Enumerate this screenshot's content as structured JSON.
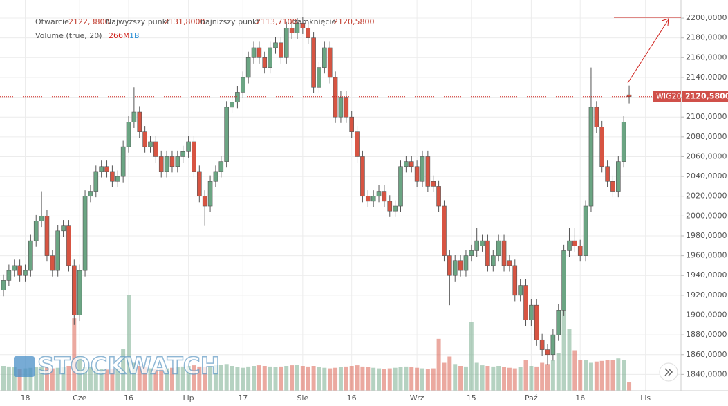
{
  "chart_data": {
    "type": "candlestick",
    "header": {
      "open_label": "Otwarcie",
      "open": "2122,3800",
      "high_label": "Najwyższy punkt",
      "high": "2131,8000",
      "low_label": "najniższy punkt",
      "low": "2113,7100",
      "close_label": "zamknięcie",
      "close": "2120,5800"
    },
    "volume_label": "Volume (true, 20)",
    "volume_value": "266M",
    "volume_ma": "1B",
    "symbol": "WIG20",
    "last_price": "2120,5800",
    "watermark": "STOCKWATCH",
    "up_color": "#6ba583",
    "down_color": "#d75442",
    "categories": [
      null,
      null,
      null,
      null,
      "18",
      null,
      null,
      null,
      null,
      null,
      null,
      null,
      null,
      null,
      "Cze",
      null,
      null,
      null,
      null,
      null,
      null,
      null,
      null,
      "16",
      null,
      null,
      null,
      null,
      null,
      null,
      null,
      null,
      null,
      null,
      "Lip",
      null,
      null,
      null,
      null,
      null,
      null,
      null,
      null,
      null,
      "17",
      null,
      null,
      null,
      null,
      null,
      null,
      null,
      null,
      null,
      null,
      "Sie",
      null,
      null,
      null,
      null,
      null,
      null,
      null,
      null,
      "16",
      null,
      null,
      null,
      null,
      null,
      null,
      null,
      null,
      null,
      null,
      null,
      "Wrz",
      null,
      null,
      null,
      null,
      null,
      null,
      null,
      null,
      null,
      "15",
      null,
      null,
      null,
      null,
      null,
      null,
      null,
      null,
      null,
      null,
      "Paź",
      null,
      null,
      null,
      null,
      null,
      null,
      null,
      null,
      "16",
      null,
      null,
      null,
      null,
      null,
      null,
      null,
      null,
      null,
      null,
      null,
      "Lis"
    ],
    "open": [
      1925,
      1935,
      1945,
      1950,
      1940,
      1945,
      1975,
      1995,
      2000,
      1960,
      1945,
      1985,
      1990,
      1950,
      1900,
      1945,
      2020,
      2025,
      2045,
      2050,
      2045,
      2035,
      2040,
      2070,
      2095,
      2105,
      2085,
      2070,
      2075,
      2060,
      2045,
      2060,
      2050,
      2060,
      2065,
      2075,
      2045,
      2020,
      2010,
      2035,
      2045,
      2055,
      2110,
      2115,
      2125,
      2140,
      2160,
      2170,
      2160,
      2150,
      2170,
      2175,
      2160,
      2190,
      2185,
      2195,
      2190,
      2180,
      2130,
      2150,
      2170,
      2140,
      2100,
      2120,
      2100,
      2085,
      2060,
      2020,
      2015,
      2020,
      2025,
      2015,
      2005,
      2010,
      2050,
      2055,
      2050,
      2035,
      2060,
      2035,
      2030,
      2010,
      1960,
      1940,
      1955,
      1945,
      1960,
      1965,
      1970,
      1975,
      1950,
      1960,
      1975,
      1955,
      1950,
      1920,
      1930,
      1895,
      1910,
      1875,
      1865,
      1860,
      1880,
      1905,
      1965,
      1975,
      1970,
      1960,
      2010,
      2110,
      2090,
      2050,
      2035,
      2025,
      2055,
      2122.38,
      null,
      null,
      null
    ],
    "high": [
      1941,
      1951,
      1956,
      1956,
      1951,
      1981,
      2001,
      2025,
      2006,
      1966,
      1991,
      1996,
      1996,
      1956,
      1951,
      2026,
      2031,
      2051,
      2056,
      2056,
      2051,
      2046,
      2076,
      2101,
      2130,
      2111,
      2091,
      2081,
      2081,
      2066,
      2066,
      2066,
      2066,
      2071,
      2081,
      2081,
      2051,
      2026,
      2041,
      2051,
      2061,
      2116,
      2121,
      2131,
      2146,
      2166,
      2176,
      2176,
      2166,
      2176,
      2181,
      2181,
      2196,
      2196,
      2200,
      2201,
      2196,
      2186,
      2156,
      2176,
      2176,
      2146,
      2126,
      2126,
      2106,
      2091,
      2066,
      2026,
      2026,
      2031,
      2031,
      2021,
      2016,
      2056,
      2061,
      2061,
      2056,
      2066,
      2066,
      2041,
      2036,
      2016,
      1966,
      1961,
      1961,
      1966,
      1971,
      1988,
      1981,
      1981,
      1966,
      1981,
      1981,
      1961,
      1956,
      1936,
      1936,
      1916,
      1916,
      1881,
      1871,
      1886,
      1911,
      1971,
      1988,
      1988,
      1976,
      2016,
      2150,
      2116,
      2096,
      2056,
      2041,
      2061,
      2101,
      2131.8,
      null,
      null,
      null
    ],
    "low": [
      1919,
      1929,
      1939,
      1934,
      1934,
      1939,
      1969,
      1989,
      1954,
      1939,
      1939,
      1979,
      1944,
      1890,
      1894,
      1939,
      2014,
      2019,
      2039,
      2039,
      2029,
      2029,
      2034,
      2064,
      2089,
      2079,
      2064,
      2064,
      2054,
      2039,
      2039,
      2044,
      2044,
      2054,
      2059,
      2039,
      2014,
      1990,
      2004,
      2029,
      2039,
      2049,
      2104,
      2109,
      2119,
      2134,
      2154,
      2154,
      2144,
      2144,
      2164,
      2154,
      2154,
      2179,
      2179,
      2184,
      2174,
      2124,
      2124,
      2144,
      2134,
      2094,
      2094,
      2094,
      2079,
      2054,
      2014,
      2009,
      2009,
      2014,
      2009,
      1999,
      1999,
      2004,
      2044,
      2044,
      2029,
      2029,
      2024,
      2024,
      2004,
      1954,
      1910,
      1934,
      1939,
      1939,
      1954,
      1959,
      1964,
      1944,
      1944,
      1954,
      1944,
      1944,
      1914,
      1914,
      1889,
      1889,
      1869,
      1859,
      1850,
      1854,
      1874,
      1899,
      1959,
      1964,
      1954,
      1954,
      2004,
      2084,
      2044,
      2029,
      2019,
      2019,
      2049,
      2113.71,
      null,
      null,
      null
    ],
    "close": [
      1935,
      1945,
      1950,
      1940,
      1945,
      1975,
      1995,
      2000,
      1960,
      1945,
      1985,
      1990,
      1950,
      1900,
      1945,
      2020,
      2025,
      2045,
      2050,
      2045,
      2035,
      2040,
      2070,
      2095,
      2105,
      2085,
      2070,
      2075,
      2060,
      2045,
      2060,
      2050,
      2060,
      2065,
      2075,
      2045,
      2020,
      2010,
      2035,
      2045,
      2055,
      2110,
      2115,
      2125,
      2140,
      2160,
      2170,
      2160,
      2150,
      2170,
      2175,
      2160,
      2190,
      2185,
      2195,
      2190,
      2180,
      2130,
      2150,
      2170,
      2140,
      2100,
      2120,
      2100,
      2085,
      2060,
      2020,
      2015,
      2020,
      2025,
      2015,
      2005,
      2010,
      2050,
      2055,
      2050,
      2035,
      2060,
      2030,
      2030,
      2010,
      1960,
      1940,
      1955,
      1945,
      1960,
      1965,
      1975,
      1975,
      1950,
      1960,
      1975,
      1950,
      1950,
      1920,
      1930,
      1895,
      1910,
      1875,
      1865,
      1860,
      1880,
      1905,
      1965,
      1975,
      1970,
      1960,
      2010,
      2110,
      2090,
      2050,
      2035,
      2025,
      2055,
      2095,
      2120.58,
      null,
      null,
      null
    ],
    "volume": [
      800,
      780,
      760,
      700,
      720,
      740,
      760,
      780,
      750,
      720,
      740,
      760,
      800,
      2330,
      1100,
      760,
      780,
      720,
      700,
      680,
      700,
      720,
      1350,
      3070,
      900,
      800,
      760,
      720,
      700,
      700,
      720,
      740,
      760,
      780,
      800,
      820,
      780,
      760,
      800,
      820,
      840,
      860,
      800,
      760,
      740,
      780,
      800,
      820,
      800,
      780,
      760,
      780,
      800,
      820,
      840,
      800,
      780,
      800,
      760,
      740,
      720,
      740,
      760,
      780,
      800,
      820,
      780,
      760,
      740,
      720,
      700,
      720,
      740,
      760,
      780,
      760,
      740,
      720,
      700,
      720,
      1670,
      900,
      1100,
      860,
      800,
      780,
      2220,
      900,
      820,
      800,
      780,
      800,
      760,
      740,
      720,
      760,
      1000,
      800,
      780,
      900,
      860,
      1000,
      1200,
      3150,
      2000,
      1300,
      1000,
      1000,
      900,
      940,
      960,
      980,
      1000,
      1040,
      1000,
      266,
      null,
      null,
      null
    ],
    "ylim": [
      1823.5,
      2218.2
    ],
    "yticks": [
      {
        "value": 1840,
        "label": "1840,0000"
      },
      {
        "value": 1860,
        "label": "1860,0000"
      },
      {
        "value": 1880,
        "label": "1880,0000"
      },
      {
        "value": 1900,
        "label": "1900,0000"
      },
      {
        "value": 1920,
        "label": "1920,0000"
      },
      {
        "value": 1940,
        "label": "1940,0000"
      },
      {
        "value": 1960,
        "label": "1960,0000"
      },
      {
        "value": 1980,
        "label": "1980,0000"
      },
      {
        "value": 2000,
        "label": "2000,0000"
      },
      {
        "value": 2020,
        "label": "2020,0000"
      },
      {
        "value": 2040,
        "label": "2040,0000"
      },
      {
        "value": 2060,
        "label": "2060,0000"
      },
      {
        "value": 2080,
        "label": "2080,0000"
      },
      {
        "value": 2100,
        "label": "2100,0000"
      },
      {
        "value": 2120,
        "label": "2120,0000"
      },
      {
        "value": 2140,
        "label": "2140,0000"
      },
      {
        "value": 2160,
        "label": "2160,0000"
      },
      {
        "value": 2180,
        "label": "2180,0000"
      },
      {
        "value": 2200,
        "label": "2200,0000"
      }
    ],
    "grid": true
  }
}
